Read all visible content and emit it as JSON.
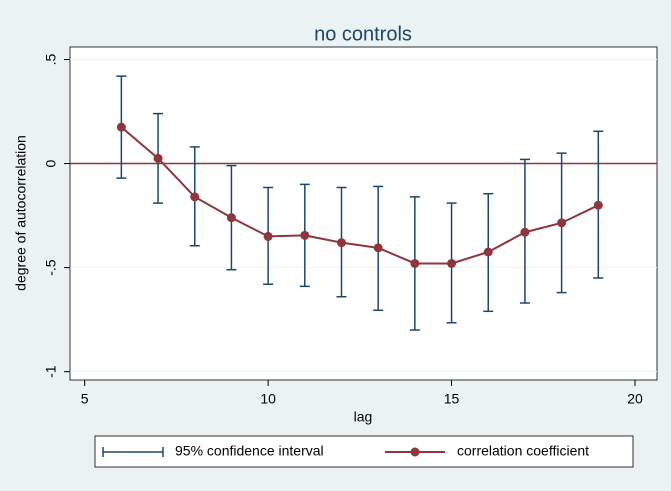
{
  "chart_data": {
    "type": "rcap_connected",
    "title": "no controls",
    "x_label": "lag",
    "y_label": "degree of autocorrelation",
    "x": [
      6,
      7,
      8,
      9,
      10,
      11,
      12,
      13,
      14,
      15,
      16,
      17,
      18,
      19
    ],
    "series": [
      {
        "name": "95% confidence interval",
        "color": "#1a476f",
        "upper": [
          0.42,
          0.24,
          0.08,
          -0.01,
          -0.115,
          -0.1,
          -0.115,
          -0.11,
          -0.16,
          -0.19,
          -0.145,
          0.02,
          0.05,
          0.155
        ],
        "lower": [
          -0.07,
          -0.19,
          -0.395,
          -0.51,
          -0.58,
          -0.59,
          -0.64,
          -0.705,
          -0.8,
          -0.765,
          -0.71,
          -0.67,
          -0.62,
          -0.55
        ]
      },
      {
        "name": "correlation coefficient",
        "color": "#90353b",
        "values": [
          0.175,
          0.025,
          -0.16,
          -0.26,
          -0.35,
          -0.345,
          -0.38,
          -0.405,
          -0.48,
          -0.48,
          -0.425,
          -0.33,
          -0.285,
          -0.2
        ]
      }
    ],
    "xlim": [
      4.6,
      20.6
    ],
    "xticks": [
      5,
      10,
      15,
      20
    ],
    "ylim": [
      -1.04,
      0.56
    ],
    "yticks": [
      {
        "value": 0.5,
        "label": ".5"
      },
      0,
      {
        "value": -0.5,
        "label": "-.5"
      },
      {
        "value": -1,
        "label": "-1"
      }
    ],
    "yline": 0,
    "yline_color": "#90353b",
    "grid": true
  }
}
